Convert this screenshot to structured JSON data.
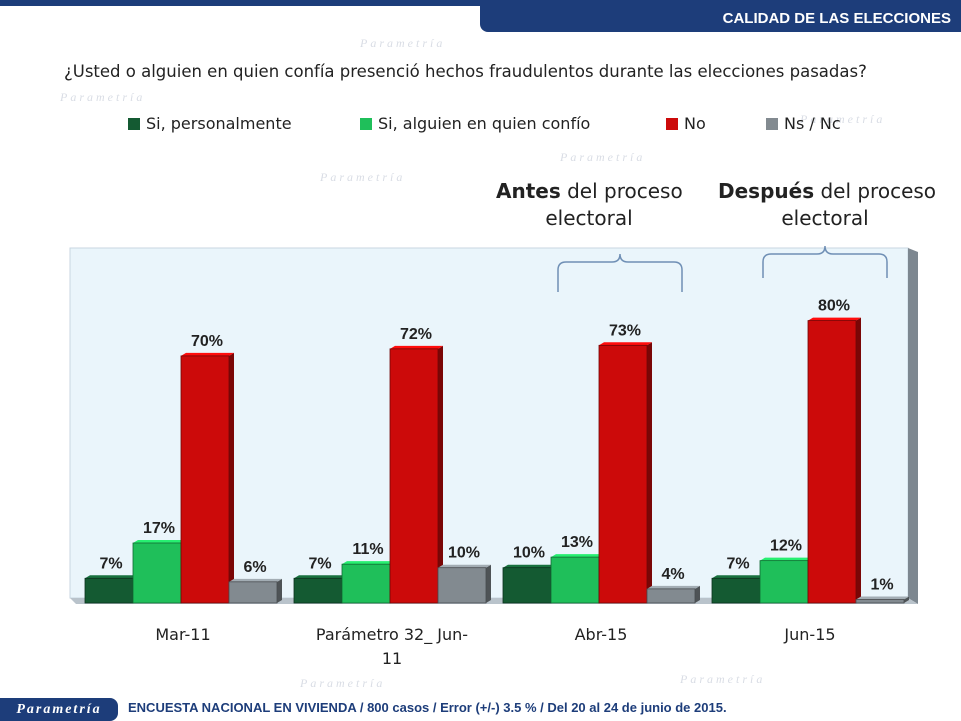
{
  "header": {
    "section_title": "CALIDAD DE LAS ELECCIONES"
  },
  "question": "¿Usted o alguien en quien confía presenció hechos fraudulentos durante las elecciones pasadas?",
  "annotations": {
    "before": {
      "bold": "Antes",
      "rest_line1": " del proceso",
      "line2": "electoral"
    },
    "after": {
      "bold": "Después",
      "rest_line1": " del proceso",
      "line2": "electoral"
    }
  },
  "footer": {
    "logo": "Parametría",
    "note": "ENCUESTA NACIONAL EN VIVIENDA / 800 casos / Error (+/-) 3.5 % / Del 20 al 24 de junio de 2015."
  },
  "watermark": {
    "text": "Parametría"
  },
  "colors": {
    "brand": "#1d3d7a",
    "plot_bg": "#eaf5fb"
  },
  "chart_data": {
    "type": "bar",
    "title": "",
    "xlabel": "",
    "ylabel": "",
    "ylim": [
      0,
      100
    ],
    "categories": [
      "Mar-11",
      "Parámetro 32_ Jun-11",
      "Abr-15",
      "Jun-15"
    ],
    "category_lines": [
      [
        "Mar-11"
      ],
      [
        "Parámetro 32_ Jun-",
        "11"
      ],
      [
        "Abr-15"
      ],
      [
        "Jun-15"
      ]
    ],
    "series": [
      {
        "name": "Si, personalmente",
        "color": "#145a32",
        "values": [
          7,
          7,
          10,
          7
        ],
        "labels": [
          "7%",
          "7%",
          "10%",
          "7%"
        ]
      },
      {
        "name": "Si, alguien en quien confío",
        "color": "#1fbf5a",
        "values": [
          17,
          11,
          13,
          12
        ],
        "labels": [
          "17%",
          "11%",
          "13%",
          "12%"
        ]
      },
      {
        "name": "No",
        "color": "#cc0a0a",
        "values": [
          70,
          72,
          73,
          80
        ],
        "labels": [
          "70%",
          "72%",
          "73%",
          "80%"
        ]
      },
      {
        "name": "Ns / Nc",
        "color": "#828a90",
        "values": [
          6,
          10,
          4,
          1
        ],
        "labels": [
          "6%",
          "10%",
          "4%",
          "1%"
        ]
      }
    ],
    "grid": false,
    "legend_position": "top"
  }
}
